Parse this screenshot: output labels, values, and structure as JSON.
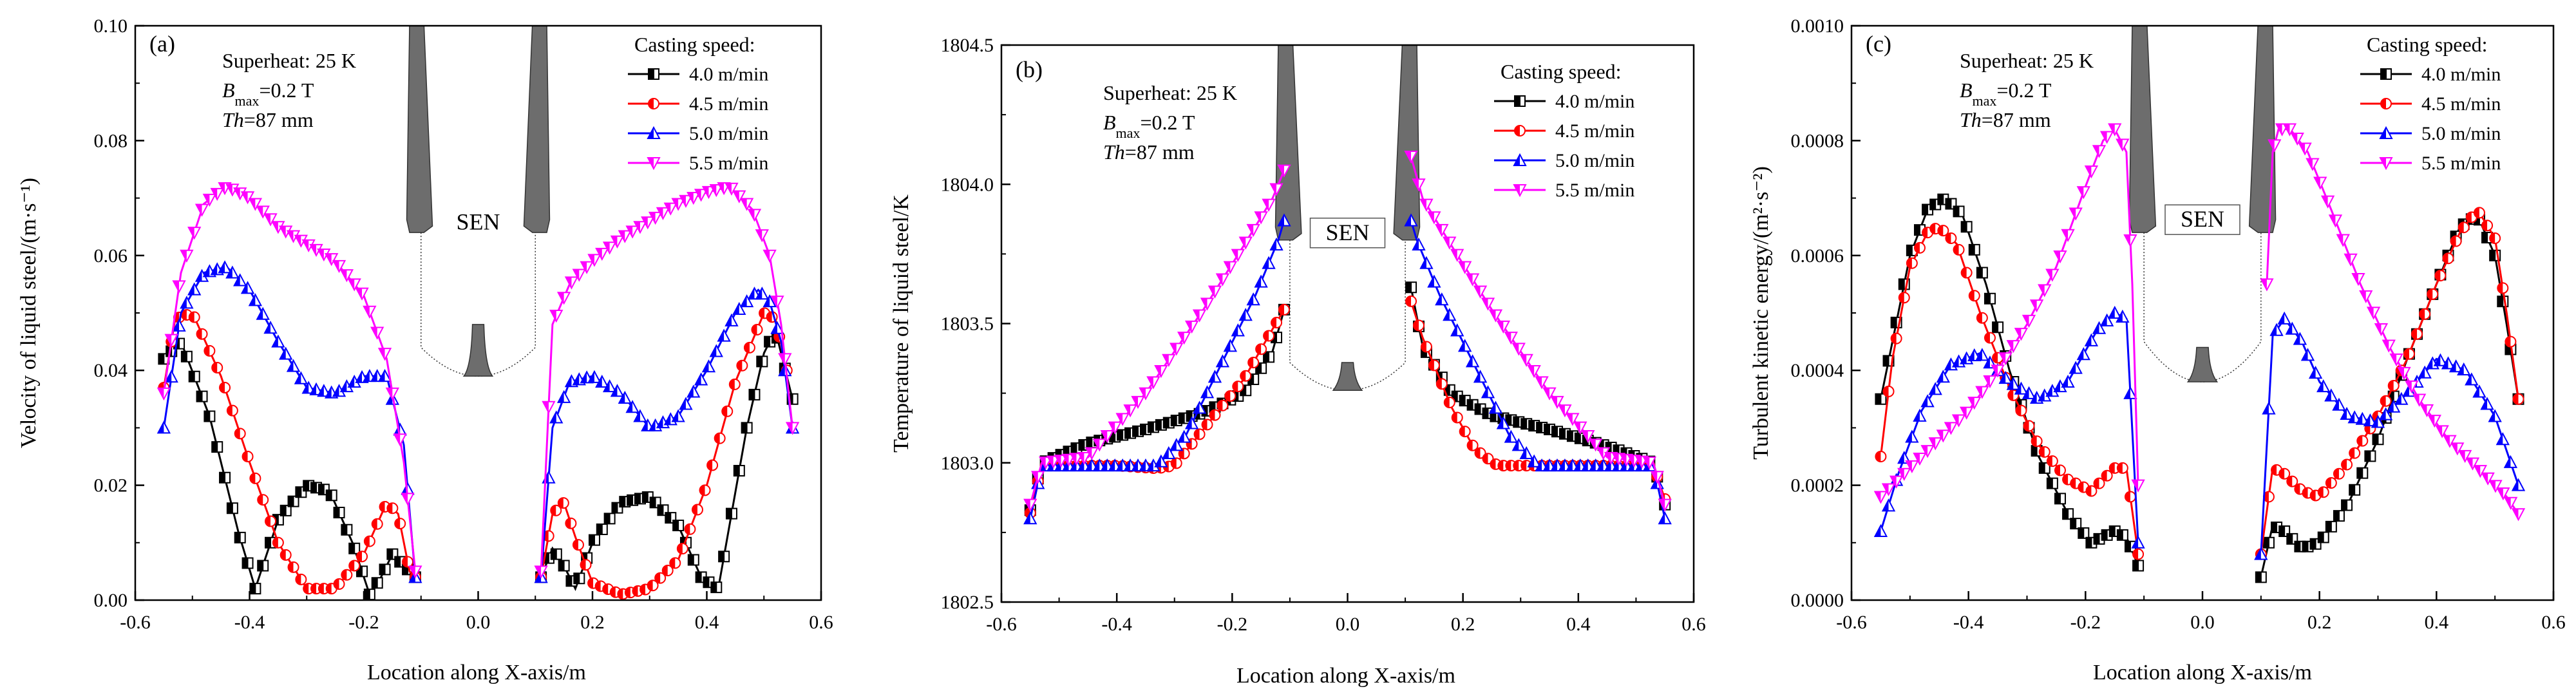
{
  "colors": {
    "4.0": "#000000",
    "4.5": "#ff0000",
    "5.0": "#0000ff",
    "5.5": "#ff00ff",
    "sen": "#6d6d6d"
  },
  "chart_data": [
    {
      "type": "line",
      "panel_label": "(a)",
      "xlabel": "Location along X-axis/m",
      "ylabel": "Velocity of liquid steel/(m·s⁻¹)",
      "xlim": [
        -0.6,
        0.6
      ],
      "ylim": [
        0.0,
        0.1
      ],
      "xticks": [
        "-0.6",
        "-0.4",
        "-0.2",
        "0.0",
        "0.2",
        "0.4",
        "0.6"
      ],
      "yticks": [
        "0.00",
        "0.02",
        "0.04",
        "0.06",
        "0.08",
        "0.10"
      ],
      "annotation": [
        "Superheat: 25 K",
        "Bmax=0.2 T",
        "Th=87 mm"
      ],
      "legend_title": "Casting speed:",
      "sen_label": "SEN",
      "series": [
        {
          "name": "4.0 m/min",
          "marker": "square",
          "left": {
            "x": [
              -0.55,
              -0.52,
              -0.47,
              -0.42,
              -0.39,
              -0.35,
              -0.3,
              -0.26,
              -0.22,
              -0.19,
              -0.17,
              -0.15,
              -0.13,
              -0.11
            ],
            "y": [
              0.042,
              0.045,
              0.032,
              0.012,
              0.002,
              0.014,
              0.02,
              0.019,
              0.01,
              0.001,
              0.004,
              0.008,
              0.006,
              0.004
            ]
          },
          "right": {
            "x": [
              0.11,
              0.13,
              0.15,
              0.17,
              0.2,
              0.25,
              0.3,
              0.35,
              0.39,
              0.42,
              0.47,
              0.5,
              0.52,
              0.55
            ],
            "y": [
              0.004,
              0.009,
              0.006,
              0.002,
              0.01,
              0.017,
              0.018,
              0.013,
              0.004,
              0.002,
              0.03,
              0.043,
              0.047,
              0.035
            ]
          }
        },
        {
          "name": "4.5 m/min",
          "marker": "circle",
          "left": {
            "x": [
              -0.55,
              -0.53,
              -0.5,
              -0.45,
              -0.4,
              -0.35,
              -0.3,
              -0.25,
              -0.2,
              -0.16,
              -0.14,
              -0.12,
              -0.11
            ],
            "y": [
              0.037,
              0.049,
              0.05,
              0.039,
              0.024,
              0.01,
              0.002,
              0.002,
              0.008,
              0.017,
              0.015,
              0.005,
              0.004
            ]
          },
          "right": {
            "x": [
              0.11,
              0.13,
              0.15,
              0.17,
              0.2,
              0.25,
              0.3,
              0.35,
              0.4,
              0.45,
              0.5,
              0.52,
              0.54
            ],
            "y": [
              0.004,
              0.015,
              0.017,
              0.011,
              0.003,
              0.001,
              0.002,
              0.007,
              0.02,
              0.038,
              0.05,
              0.049,
              0.04
            ]
          }
        },
        {
          "name": "5.0 m/min",
          "marker": "triangle-up",
          "left": {
            "x": [
              -0.55,
              -0.52,
              -0.48,
              -0.44,
              -0.4,
              -0.35,
              -0.3,
              -0.25,
              -0.2,
              -0.16,
              -0.13,
              -0.11
            ],
            "y": [
              0.03,
              0.05,
              0.057,
              0.058,
              0.054,
              0.045,
              0.037,
              0.036,
              0.039,
              0.039,
              0.027,
              0.004
            ]
          },
          "right": {
            "x": [
              0.11,
              0.13,
              0.16,
              0.2,
              0.25,
              0.3,
              0.35,
              0.4,
              0.45,
              0.49,
              0.51,
              0.53,
              0.55
            ],
            "y": [
              0.004,
              0.03,
              0.038,
              0.039,
              0.036,
              0.03,
              0.032,
              0.04,
              0.05,
              0.054,
              0.052,
              0.045,
              0.03
            ]
          }
        },
        {
          "name": "5.5 m/min",
          "marker": "triangle-down",
          "left": {
            "x": [
              -0.55,
              -0.52,
              -0.48,
              -0.44,
              -0.4,
              -0.35,
              -0.3,
              -0.25,
              -0.2,
              -0.16,
              -0.13,
              -0.11
            ],
            "y": [
              0.036,
              0.057,
              0.069,
              0.072,
              0.07,
              0.065,
              0.062,
              0.059,
              0.053,
              0.042,
              0.024,
              0.005
            ]
          },
          "right": {
            "x": [
              0.11,
              0.13,
              0.16,
              0.2,
              0.25,
              0.3,
              0.35,
              0.4,
              0.44,
              0.48,
              0.51,
              0.53,
              0.55
            ],
            "y": [
              0.005,
              0.048,
              0.055,
              0.059,
              0.063,
              0.066,
              0.069,
              0.071,
              0.072,
              0.068,
              0.06,
              0.048,
              0.03
            ]
          }
        }
      ]
    },
    {
      "type": "line",
      "panel_label": "(b)",
      "xlabel": "Location along X-axis/m",
      "ylabel": "Temperature of liquid steel/K",
      "xlim": [
        -0.6,
        0.6
      ],
      "ylim": [
        1802.5,
        1804.5
      ],
      "xticks": [
        "-0.6",
        "-0.4",
        "-0.2",
        "0.0",
        "0.2",
        "0.4",
        "0.6"
      ],
      "yticks": [
        "1802.5",
        "1803.0",
        "1803.5",
        "1804.0",
        "1804.5"
      ],
      "annotation": [
        "Superheat: 25 K",
        "Bmax=0.2 T",
        "Th=87 mm"
      ],
      "legend_title": "Casting speed:",
      "sen_label": "SEN",
      "series": [
        {
          "name": "4.0 m/min",
          "marker": "square",
          "left": {
            "x": [
              -0.55,
              -0.53,
              -0.45,
              -0.35,
              -0.25,
              -0.18,
              -0.13,
              -0.11
            ],
            "y": [
              1802.83,
              1803.0,
              1803.07,
              1803.12,
              1803.18,
              1803.25,
              1803.4,
              1803.55
            ]
          },
          "right": {
            "x": [
              0.11,
              0.13,
              0.18,
              0.25,
              0.35,
              0.45,
              0.53,
              0.55
            ],
            "y": [
              1803.63,
              1803.42,
              1803.25,
              1803.17,
              1803.12,
              1803.06,
              1803.0,
              1802.85
            ]
          }
        },
        {
          "name": "4.5 m/min",
          "marker": "circle",
          "left": {
            "x": [
              -0.55,
              -0.53,
              -0.4,
              -0.33,
              -0.3,
              -0.25,
              -0.18,
              -0.13,
              -0.11
            ],
            "y": [
              1802.82,
              1802.99,
              1802.99,
              1802.98,
              1802.99,
              1803.12,
              1803.3,
              1803.48,
              1803.55
            ]
          },
          "right": {
            "x": [
              0.11,
              0.13,
              0.18,
              0.22,
              0.26,
              0.35,
              0.45,
              0.53,
              0.55
            ],
            "y": [
              1803.58,
              1803.45,
              1803.2,
              1803.05,
              1802.99,
              1802.99,
              1802.99,
              1802.99,
              1802.87
            ]
          }
        },
        {
          "name": "5.0 m/min",
          "marker": "triangle-up",
          "left": {
            "x": [
              -0.55,
              -0.53,
              -0.4,
              -0.33,
              -0.28,
              -0.22,
              -0.16,
              -0.12,
              -0.11
            ],
            "y": [
              1802.8,
              1802.99,
              1802.99,
              1802.99,
              1803.1,
              1803.35,
              1803.6,
              1803.8,
              1803.87
            ]
          },
          "right": {
            "x": [
              0.11,
              0.12,
              0.16,
              0.22,
              0.28,
              0.33,
              0.4,
              0.53,
              0.55
            ],
            "y": [
              1803.87,
              1803.8,
              1803.6,
              1803.35,
              1803.1,
              1802.99,
              1802.99,
              1802.99,
              1802.8
            ]
          }
        },
        {
          "name": "5.5 m/min",
          "marker": "triangle-down",
          "left": {
            "x": [
              -0.55,
              -0.53,
              -0.45,
              -0.35,
              -0.25,
              -0.18,
              -0.13,
              -0.11
            ],
            "y": [
              1802.85,
              1803.0,
              1803.02,
              1803.25,
              1803.55,
              1803.78,
              1803.95,
              1804.05
            ]
          },
          "right": {
            "x": [
              0.11,
              0.13,
              0.18,
              0.25,
              0.35,
              0.45,
              0.53,
              0.55
            ],
            "y": [
              1804.1,
              1803.95,
              1803.78,
              1803.55,
              1803.25,
              1803.02,
              1803.0,
              1802.85
            ]
          }
        }
      ]
    },
    {
      "type": "line",
      "panel_label": "(c)",
      "xlabel": "Location along X-axis/m",
      "ylabel": "Turbulent kinetic energy/(m²·s⁻²)",
      "xlim": [
        -0.6,
        0.6
      ],
      "ylim": [
        0.0,
        0.001
      ],
      "xticks": [
        "-0.6",
        "-0.4",
        "-0.2",
        "0.0",
        "0.2",
        "0.4",
        "0.6"
      ],
      "yticks": [
        "0.0000",
        "0.0002",
        "0.0004",
        "0.0006",
        "0.0008",
        "0.0010"
      ],
      "annotation": [
        "Superheat: 25 K",
        "Bmax=0.2 T",
        "Th=87 mm"
      ],
      "legend_title": "Casting speed:",
      "sen_label": "SEN",
      "series": [
        {
          "name": "4.0 m/min",
          "marker": "square",
          "left": {
            "x": [
              -0.55,
              -0.53,
              -0.5,
              -0.47,
              -0.44,
              -0.41,
              -0.37,
              -0.33,
              -0.28,
              -0.23,
              -0.19,
              -0.15,
              -0.13,
              -0.11
            ],
            "y": [
              0.00035,
              0.00045,
              0.0006,
              0.00068,
              0.0007,
              0.00067,
              0.00055,
              0.0004,
              0.00025,
              0.00015,
              0.0001,
              0.00012,
              0.00011,
              6e-05
            ]
          },
          "right": {
            "x": [
              0.1,
              0.12,
              0.14,
              0.17,
              0.2,
              0.25,
              0.3,
              0.35,
              0.4,
              0.44,
              0.47,
              0.5,
              0.52,
              0.54
            ],
            "y": [
              4e-05,
              0.00013,
              0.00012,
              9e-05,
              0.0001,
              0.00017,
              0.00028,
              0.00042,
              0.00055,
              0.00065,
              0.00067,
              0.0006,
              0.00048,
              0.00035
            ]
          }
        },
        {
          "name": "4.5 m/min",
          "marker": "circle",
          "left": {
            "x": [
              -0.55,
              -0.53,
              -0.5,
              -0.47,
              -0.45,
              -0.42,
              -0.38,
              -0.33,
              -0.28,
              -0.23,
              -0.19,
              -0.15,
              -0.13,
              -0.11
            ],
            "y": [
              0.00025,
              0.00042,
              0.00058,
              0.00064,
              0.00065,
              0.00062,
              0.0005,
              0.00037,
              0.00027,
              0.00021,
              0.00019,
              0.00023,
              0.00023,
              8e-05
            ]
          },
          "right": {
            "x": [
              0.1,
              0.12,
              0.14,
              0.17,
              0.2,
              0.25,
              0.3,
              0.35,
              0.4,
              0.44,
              0.47,
              0.5,
              0.52,
              0.54
            ],
            "y": [
              8e-05,
              0.00023,
              0.00022,
              0.00019,
              0.00018,
              0.00024,
              0.00032,
              0.00042,
              0.00055,
              0.00064,
              0.00068,
              0.00063,
              0.0005,
              0.00035
            ]
          }
        },
        {
          "name": "5.0 m/min",
          "marker": "triangle-up",
          "left": {
            "x": [
              -0.55,
              -0.52,
              -0.48,
              -0.43,
              -0.38,
              -0.33,
              -0.28,
              -0.23,
              -0.18,
              -0.15,
              -0.13,
              -0.11
            ],
            "y": [
              0.00012,
              0.00022,
              0.00033,
              0.00041,
              0.00043,
              0.00038,
              0.00035,
              0.00038,
              0.00047,
              0.0005,
              0.00049,
              0.0001
            ]
          },
          "right": {
            "x": [
              0.1,
              0.12,
              0.14,
              0.17,
              0.2,
              0.25,
              0.3,
              0.35,
              0.4,
              0.45,
              0.5,
              0.52,
              0.54
            ],
            "y": [
              8e-05,
              0.00046,
              0.00049,
              0.00045,
              0.00038,
              0.00032,
              0.00031,
              0.00036,
              0.00042,
              0.0004,
              0.00032,
              0.00026,
              0.0002
            ]
          }
        },
        {
          "name": "5.5 m/min",
          "marker": "triangle-down",
          "left": {
            "x": [
              -0.55,
              -0.5,
              -0.45,
              -0.4,
              -0.35,
              -0.3,
              -0.25,
              -0.2,
              -0.17,
              -0.15,
              -0.13,
              -0.12,
              -0.11
            ],
            "y": [
              0.00018,
              0.00023,
              0.00028,
              0.00033,
              0.0004,
              0.00048,
              0.00058,
              0.00072,
              0.0008,
              0.00082,
              0.00078,
              0.00055,
              0.0002
            ]
          },
          "right": {
            "x": [
              0.11,
              0.12,
              0.13,
              0.15,
              0.18,
              0.22,
              0.27,
              0.32,
              0.37,
              0.42,
              0.47,
              0.52,
              0.54
            ],
            "y": [
              0.00055,
              0.00078,
              0.00082,
              0.00082,
              0.00078,
              0.00068,
              0.00055,
              0.00044,
              0.00035,
              0.00028,
              0.00023,
              0.00018,
              0.00015
            ]
          }
        }
      ]
    }
  ]
}
